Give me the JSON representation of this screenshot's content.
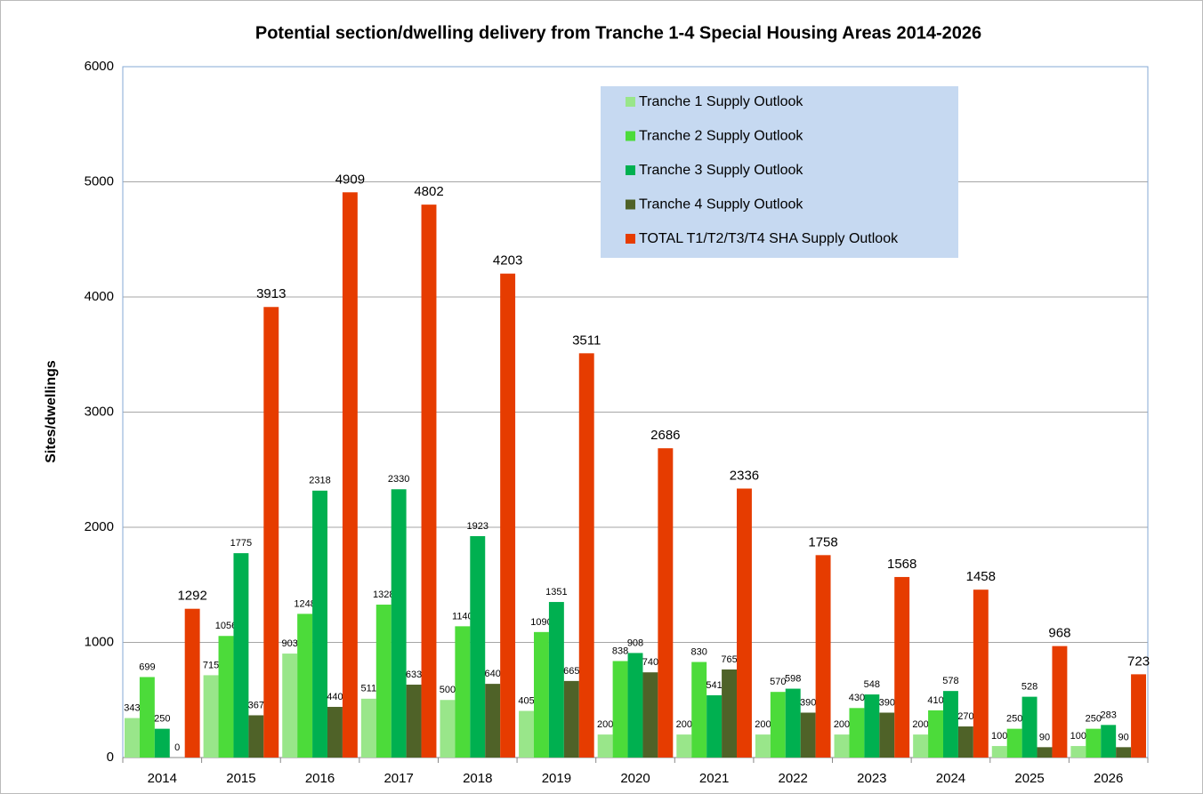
{
  "chart_data": {
    "type": "bar",
    "title": "Potential section/dwelling delivery from Tranche 1-4 Special Housing Areas 2014-2026",
    "y_label": "Sites/dwellings",
    "categories": [
      "2014",
      "2015",
      "2016",
      "2017",
      "2018",
      "2019",
      "2020",
      "2021",
      "2022",
      "2023",
      "2024",
      "2025",
      "2026"
    ],
    "series": [
      {
        "name": "Tranche 1 Supply Outlook",
        "color": "#99e68a",
        "values": [
          343,
          715,
          903,
          511,
          500,
          405,
          200,
          200,
          200,
          200,
          200,
          100,
          100
        ]
      },
      {
        "name": "Tranche 2 Supply Outlook",
        "color": "#4cdb3a",
        "values": [
          699,
          1056,
          1248,
          1328,
          1140,
          1090,
          838,
          830,
          570,
          430,
          410,
          250,
          250
        ]
      },
      {
        "name": "Tranche 3 Supply Outlook",
        "color": "#00b050",
        "values": [
          250,
          1775,
          2318,
          2330,
          1923,
          1351,
          908,
          541,
          598,
          548,
          578,
          528,
          283
        ]
      },
      {
        "name": "Tranche 4 Supply Outlook",
        "color": "#4f6228",
        "values": [
          0,
          367,
          440,
          633,
          640,
          665,
          740,
          765,
          390,
          390,
          270,
          90,
          90
        ]
      },
      {
        "name": "TOTAL T1/T2/T3/T4 SHA Supply Outlook",
        "color": "#e63c00",
        "values": [
          1292,
          3913,
          4909,
          4802,
          4203,
          3511,
          2686,
          2336,
          1758,
          1568,
          1458,
          968,
          723
        ]
      }
    ],
    "ylim": [
      0,
      6000
    ],
    "yticks": [
      0,
      1000,
      2000,
      3000,
      4000,
      5000,
      6000
    ],
    "grid": true,
    "legend": "top-right"
  }
}
